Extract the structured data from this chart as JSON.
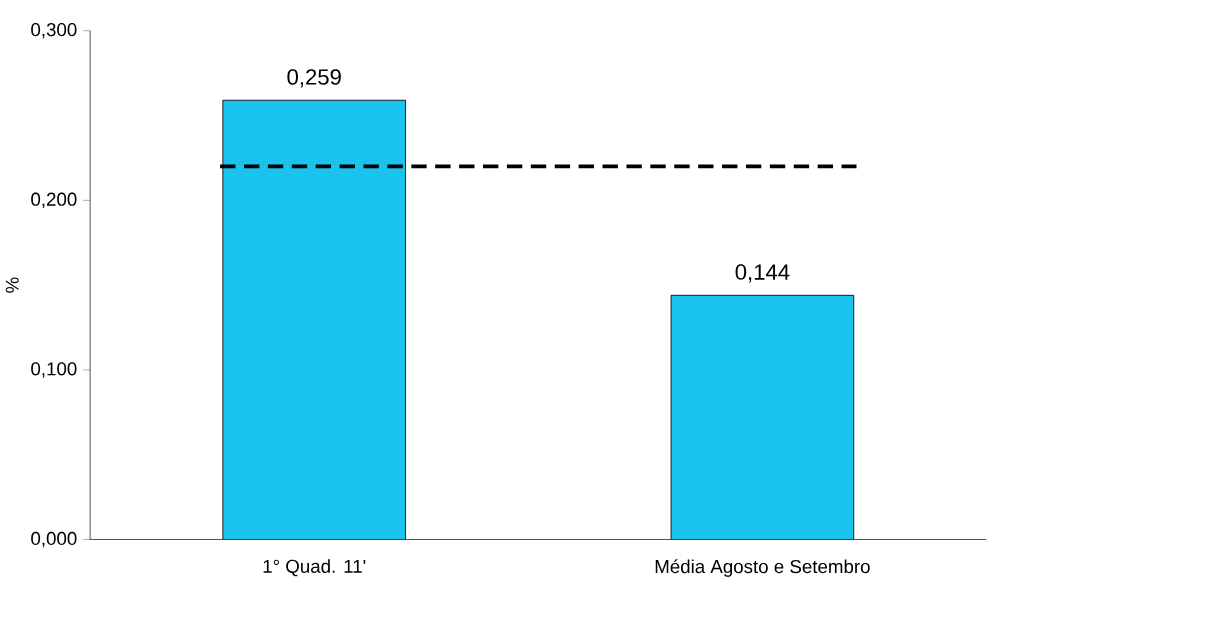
{
  "chart_data": {
    "type": "bar",
    "ylabel": "%",
    "categories": [
      "1° Quad. 11'",
      "Média Agosto e Setembro"
    ],
    "values": [
      0.259,
      0.144
    ],
    "color": "#19c3ee",
    "value_labels": [
      "0,259",
      "0,144"
    ],
    "ylim": [
      0,
      0.3
    ],
    "yticks": [
      {
        "value": 0,
        "label": "0,000"
      },
      {
        "value": 0.1,
        "label": "0,100"
      },
      {
        "value": 0.2,
        "label": "0,200"
      },
      {
        "value": 0.3,
        "label": "0,300"
      }
    ],
    "ref_lines": [
      {
        "axis": "y",
        "value": 0.22,
        "color": "#000000",
        "line_style": "dashed"
      }
    ],
    "grid": false
  }
}
